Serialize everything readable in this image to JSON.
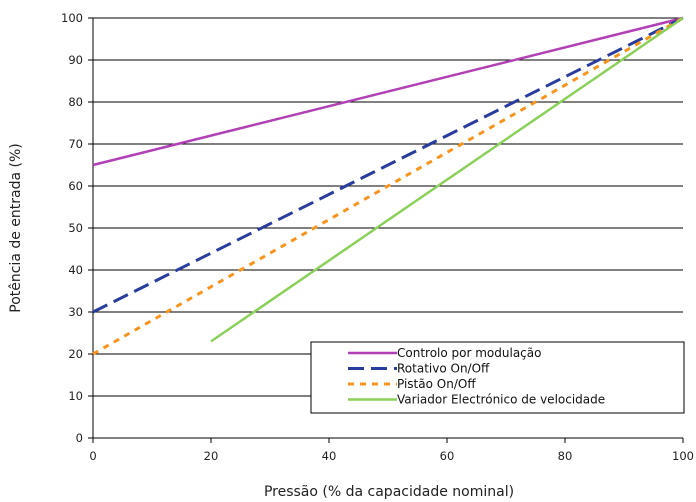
{
  "chart_data": {
    "type": "line",
    "title": "",
    "xlabel": "Pressão (% da capacidade nominal)",
    "ylabel": "Potência de entrada (%)",
    "xlim": [
      0,
      100
    ],
    "ylim": [
      0,
      100
    ],
    "xticks": [
      0,
      20,
      40,
      60,
      80,
      100
    ],
    "yticks": [
      0,
      10,
      20,
      30,
      40,
      50,
      60,
      70,
      80,
      90,
      100
    ],
    "grid": "horizontal",
    "legend_position": "bottom-right",
    "series": [
      {
        "name": "Controlo por modulação",
        "color": "#b13fb5",
        "style": "solid",
        "x": [
          0,
          100
        ],
        "y": [
          65,
          100
        ]
      },
      {
        "name": "Rotativo On/Off",
        "color": "#2b3d9c",
        "style": "dashed",
        "x": [
          0,
          100
        ],
        "y": [
          30,
          100
        ]
      },
      {
        "name": "Pistão On/Off",
        "color": "#f7941d",
        "style": "dotted",
        "x": [
          0,
          100
        ],
        "y": [
          20,
          100
        ]
      },
      {
        "name": "Variador Electrónico de velocidade",
        "color": "#8ccf5a",
        "style": "solid-light",
        "x": [
          20,
          100
        ],
        "y": [
          23,
          100
        ]
      }
    ]
  }
}
